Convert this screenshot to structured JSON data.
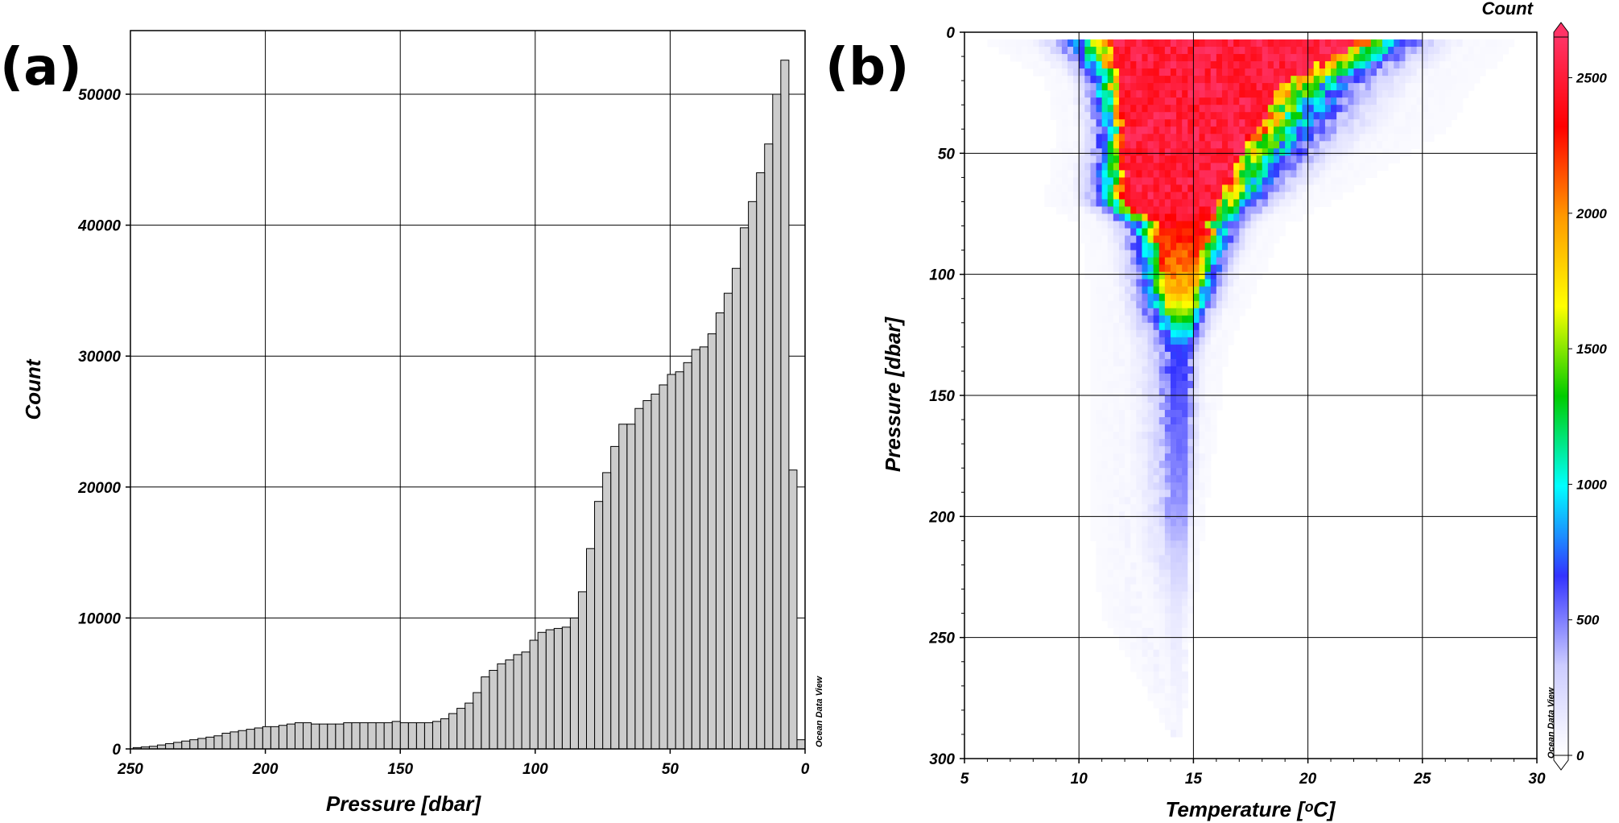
{
  "chart_data": [
    {
      "panel_label": "(a)",
      "type": "bar",
      "subtype": "histogram",
      "xlabel": "Pressure [dbar]",
      "ylabel": "Count",
      "xlim": [
        250,
        0
      ],
      "ylim": [
        0,
        55000
      ],
      "x_reversed": true,
      "xticks": [
        "250",
        "200",
        "150",
        "100",
        "50",
        "0"
      ],
      "yticks": [
        "0",
        "10000",
        "20000",
        "30000",
        "40000",
        "50000"
      ],
      "grid": true,
      "fill_color": "#cccccc",
      "bin_width": 3,
      "watermark": "Ocean Data View",
      "bins_left_edge": [
        0,
        3,
        6,
        9,
        12,
        15,
        18,
        21,
        24,
        27,
        30,
        33,
        36,
        39,
        42,
        45,
        48,
        51,
        54,
        57,
        60,
        63,
        66,
        69,
        72,
        75,
        78,
        81,
        84,
        87,
        90,
        93,
        96,
        99,
        102,
        105,
        108,
        111,
        114,
        117,
        120,
        123,
        126,
        129,
        132,
        135,
        138,
        141,
        144,
        147,
        150,
        153,
        156,
        159,
        162,
        165,
        168,
        171,
        174,
        177,
        180,
        183,
        186,
        189,
        192,
        195,
        198,
        201,
        204,
        207,
        210,
        213,
        216,
        219,
        222,
        225,
        228,
        231,
        234,
        237,
        240,
        243,
        246
      ],
      "values": [
        700,
        21300,
        52600,
        50000,
        46200,
        44000,
        41800,
        39800,
        36700,
        34800,
        33300,
        31700,
        30700,
        30500,
        29500,
        28800,
        28600,
        27800,
        27100,
        26600,
        26000,
        24800,
        24800,
        23100,
        21100,
        18900,
        15300,
        12000,
        10000,
        9300,
        9200,
        9100,
        8900,
        8300,
        7400,
        7200,
        6800,
        6500,
        6000,
        5500,
        4300,
        3500,
        3100,
        2700,
        2300,
        2100,
        2000,
        2000,
        2000,
        2000,
        2100,
        2000,
        2000,
        2000,
        2000,
        2000,
        2000,
        1900,
        1900,
        1900,
        1900,
        2000,
        2000,
        1900,
        1800,
        1700,
        1700,
        1600,
        1500,
        1400,
        1300,
        1200,
        1000,
        900,
        800,
        700,
        600,
        500,
        400,
        300,
        200,
        150,
        100
      ]
    },
    {
      "panel_label": "(b)",
      "type": "heatmap",
      "xlabel": "Temperature [ᵒC]",
      "ylabel": "Pressure [dbar]",
      "xlim": [
        5,
        30
      ],
      "ylim": [
        300,
        0
      ],
      "y_reversed": true,
      "xticks": [
        "5",
        "10",
        "15",
        "20",
        "25",
        "30"
      ],
      "yticks": [
        "0",
        "50",
        "100",
        "150",
        "200",
        "250",
        "300"
      ],
      "grid": true,
      "colorbar": {
        "title": "Count",
        "ticks": [
          "0",
          "500",
          "1000",
          "1500",
          "2000",
          "2500"
        ],
        "range": [
          0,
          2650
        ],
        "extend": "both",
        "colors": [
          "#ffffff",
          "#ccccff",
          "#3333ff",
          "#00ffff",
          "#00cc00",
          "#ffff00",
          "#ff9900",
          "#ff0000",
          "#ff3366"
        ]
      },
      "watermark": "Ocean Data View",
      "distribution_model": [
        {
          "pressure": 5,
          "temp_min": 6.0,
          "temp_max": 29.0,
          "core_min": 11.5,
          "core_max": 22.0,
          "peak": 2650
        },
        {
          "pressure": 20,
          "temp_min": 8.5,
          "temp_max": 27.5,
          "core_min": 11.7,
          "core_max": 19.0,
          "peak": 2650
        },
        {
          "pressure": 40,
          "temp_min": 9.0,
          "temp_max": 26.0,
          "core_min": 12.0,
          "core_max": 17.5,
          "peak": 2650
        },
        {
          "pressure": 70,
          "temp_min": 8.5,
          "temp_max": 21.0,
          "core_min": 12.0,
          "core_max": 16.0,
          "peak": 2650
        },
        {
          "pressure": 80,
          "temp_min": 10.0,
          "temp_max": 19.0,
          "core_min": 13.5,
          "core_max": 15.6,
          "peak": 2500
        },
        {
          "pressure": 110,
          "temp_min": 10.5,
          "temp_max": 17.5,
          "core_min": 13.8,
          "core_max": 15.0,
          "peak": 1900
        },
        {
          "pressure": 130,
          "temp_min": 10.5,
          "temp_max": 16.5,
          "core_min": 14.0,
          "core_max": 14.8,
          "peak": 700
        },
        {
          "pressure": 200,
          "temp_min": 10.5,
          "temp_max": 15.5,
          "core_min": 14.0,
          "core_max": 14.7,
          "peak": 450
        },
        {
          "pressure": 240,
          "temp_min": 11.0,
          "temp_max": 15.0,
          "core_min": 14.1,
          "core_max": 14.6,
          "peak": 150
        },
        {
          "pressure": 290,
          "temp_min": 14.0,
          "temp_max": 14.5,
          "core_min": 14.2,
          "core_max": 14.4,
          "peak": 60
        }
      ]
    }
  ]
}
